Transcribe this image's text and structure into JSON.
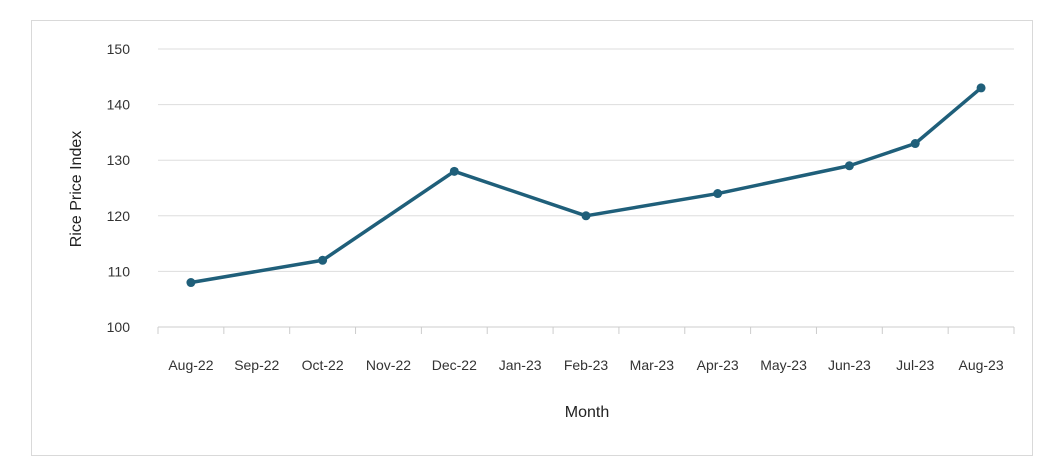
{
  "chart_data": {
    "type": "line",
    "xlabel": "Month",
    "ylabel": "Rice Price Index",
    "ylim": [
      100,
      150
    ],
    "yticks": [
      100,
      110,
      120,
      130,
      140,
      150
    ],
    "grid": "horizontal",
    "categories": [
      "Aug-22",
      "Sep-22",
      "Oct-22",
      "Nov-22",
      "Dec-22",
      "Jan-23",
      "Feb-23",
      "Mar-23",
      "Apr-23",
      "May-23",
      "Jun-23",
      "Jul-23",
      "Aug-23"
    ],
    "series": [
      {
        "points": [
          {
            "x": "Aug-22",
            "y": 108
          },
          {
            "x": "Oct-22",
            "y": 112
          },
          {
            "x": "Dec-22",
            "y": 128
          },
          {
            "x": "Feb-23",
            "y": 120
          },
          {
            "x": "Apr-23",
            "y": 124
          },
          {
            "x": "Jun-23",
            "y": 129
          },
          {
            "x": "Jul-23",
            "y": 133
          },
          {
            "x": "Aug-23",
            "y": 143
          }
        ]
      }
    ],
    "colors": {
      "line": "#1f5f7a",
      "grid": "#dddddd",
      "axis": "#cccccc"
    }
  }
}
